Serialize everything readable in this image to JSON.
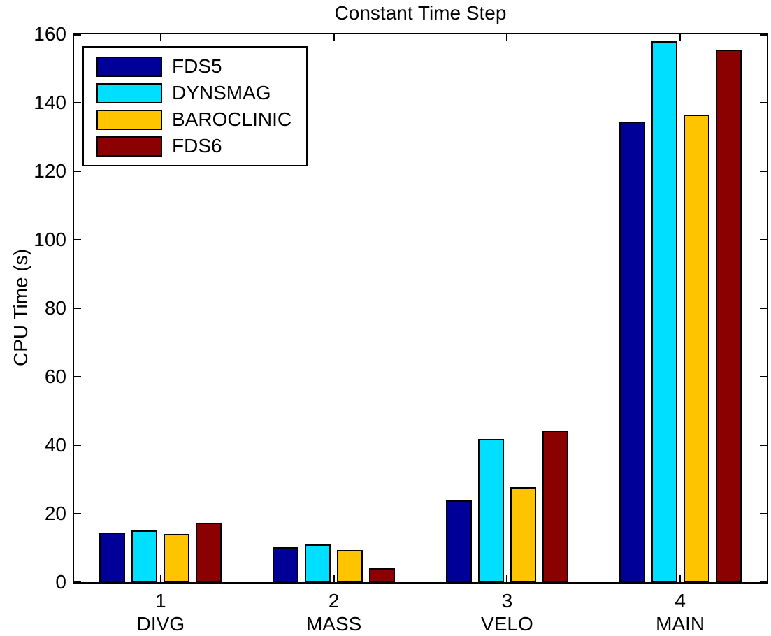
{
  "chart_data": {
    "type": "bar",
    "title": "Constant Time Step",
    "xlabel": "",
    "ylabel": "CPU Time (s)",
    "ylim": [
      0,
      160
    ],
    "yticks": [
      0,
      20,
      40,
      60,
      80,
      100,
      120,
      140,
      160
    ],
    "xlim": [
      0.5,
      4.5
    ],
    "categories": [
      "1",
      "2",
      "3",
      "4"
    ],
    "category_names": [
      "DIVG",
      "MASS",
      "VELO",
      "MAIN"
    ],
    "grid": false,
    "legend_position": "top-left",
    "axis_color": "#000000",
    "background_color": "#ffffff",
    "series": [
      {
        "name": "FDS5",
        "color": "#000099",
        "values": [
          14.5,
          10.2,
          23.9,
          134.5
        ]
      },
      {
        "name": "DYNSMAG",
        "color": "#00DFFF",
        "values": [
          15.2,
          11.1,
          41.8,
          158.0
        ]
      },
      {
        "name": "BAROCLINIC",
        "color": "#FFC400",
        "values": [
          14.0,
          9.4,
          27.8,
          136.5
        ]
      },
      {
        "name": "FDS6",
        "color": "#8B0000",
        "values": [
          17.4,
          4.1,
          44.3,
          155.6
        ]
      }
    ]
  }
}
